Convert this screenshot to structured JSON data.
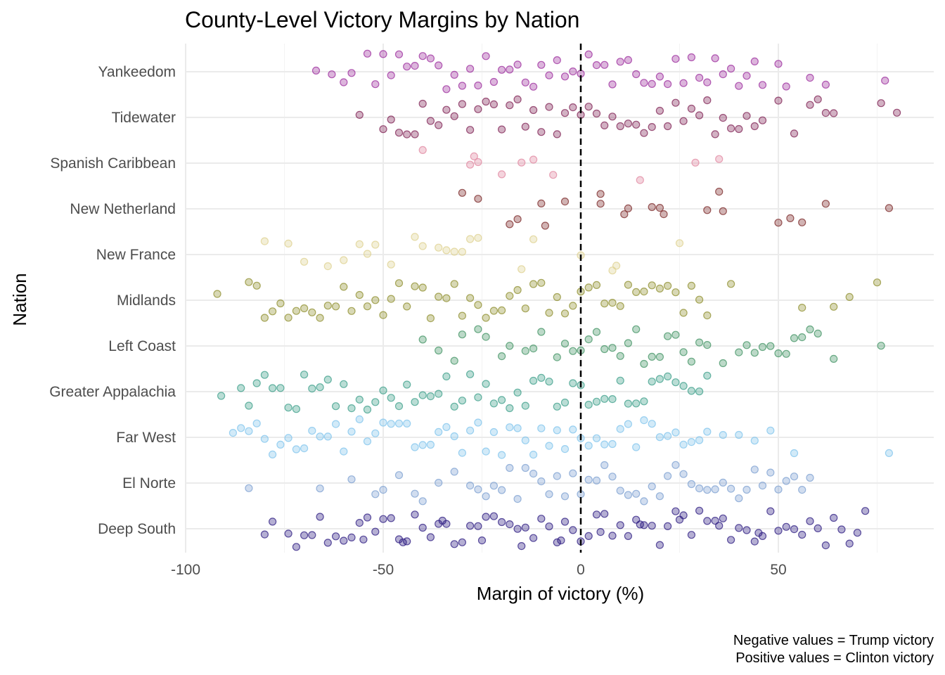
{
  "chart_data": {
    "type": "scatter",
    "title": "County-Level Victory Margins by Nation",
    "xlabel": "Margin of victory (%)",
    "ylabel": "Nation",
    "xlim": [
      -100,
      90
    ],
    "x_ticks": [
      -100,
      -50,
      0,
      50
    ],
    "x_tick_labels": [
      "-100",
      "-50",
      "0",
      "50"
    ],
    "reference_line": {
      "x": 0,
      "style": "dashed",
      "color": "#000000"
    },
    "grid": true,
    "legend": "none",
    "jitter": "vertical jitter within each nation row",
    "point_opacity": 0.35,
    "categories": [
      "Deep South",
      "El Norte",
      "Far West",
      "Greater Appalachia",
      "Left Coast",
      "Midlands",
      "New France",
      "New Netherland",
      "Spanish Caribbean",
      "Tidewater",
      "Yankeedom"
    ],
    "series": [
      {
        "name": "Deep South",
        "color": "#2b1a80",
        "x": [
          -80,
          -78,
          -74,
          -72,
          -70,
          -68,
          -66,
          -64,
          -62,
          -60,
          -58,
          -56,
          -55,
          -54,
          -52,
          -50,
          -48,
          -46,
          -45,
          -44,
          -42,
          -40,
          -38,
          -36,
          -35,
          -34,
          -32,
          -30,
          -28,
          -26,
          -25,
          -24,
          -22,
          -20,
          -18,
          -16,
          -15,
          -14,
          -12,
          -10,
          -8,
          -6,
          -5,
          -4,
          -2,
          0,
          2,
          4,
          5,
          6,
          8,
          10,
          12,
          14,
          15,
          16,
          18,
          20,
          22,
          24,
          25,
          26,
          28,
          30,
          32,
          34,
          35,
          36,
          38,
          40,
          42,
          44,
          45,
          46,
          48,
          50,
          52,
          54,
          56,
          58,
          60,
          62,
          64,
          66,
          68,
          70,
          72
        ]
      },
      {
        "name": "El Norte",
        "color": "#7b9fd0",
        "x": [
          -84,
          -66,
          -58,
          -52,
          -50,
          -46,
          -42,
          -40,
          -36,
          -32,
          -28,
          -26,
          -24,
          -22,
          -20,
          -18,
          -16,
          -14,
          -12,
          -10,
          -8,
          -6,
          -4,
          -2,
          0,
          2,
          4,
          6,
          8,
          10,
          12,
          14,
          16,
          18,
          20,
          22,
          24,
          26,
          28,
          30,
          32,
          34,
          36,
          38,
          40,
          42,
          44,
          46,
          48,
          50,
          52,
          54,
          56,
          58
        ]
      },
      {
        "name": "Far West",
        "color": "#7ec3ec",
        "x": [
          -88,
          -86,
          -84,
          -82,
          -80,
          -78,
          -76,
          -74,
          -72,
          -70,
          -68,
          -66,
          -64,
          -62,
          -60,
          -58,
          -56,
          -54,
          -52,
          -50,
          -48,
          -46,
          -44,
          -42,
          -40,
          -38,
          -36,
          -34,
          -32,
          -30,
          -28,
          -26,
          -24,
          -22,
          -20,
          -18,
          -16,
          -14,
          -12,
          -10,
          -8,
          -6,
          -4,
          -2,
          0,
          2,
          4,
          6,
          8,
          10,
          12,
          14,
          16,
          18,
          20,
          22,
          24,
          26,
          28,
          30,
          32,
          36,
          40,
          44,
          48,
          54,
          78
        ]
      },
      {
        "name": "Greater Appalachia",
        "color": "#3a9e88",
        "x": [
          -91,
          -86,
          -84,
          -82,
          -80,
          -78,
          -76,
          -74,
          -72,
          -70,
          -68,
          -66,
          -64,
          -62,
          -60,
          -58,
          -56,
          -54,
          -52,
          -50,
          -48,
          -46,
          -44,
          -42,
          -40,
          -38,
          -36,
          -34,
          -32,
          -30,
          -28,
          -26,
          -24,
          -22,
          -20,
          -18,
          -16,
          -14,
          -12,
          -10,
          -8,
          -6,
          -4,
          -2,
          0,
          2,
          4,
          6,
          8,
          10,
          12,
          14,
          16,
          18,
          20,
          22,
          24,
          26,
          28,
          30,
          32
        ]
      },
      {
        "name": "Left Coast",
        "color": "#3f9162",
        "x": [
          -40,
          -36,
          -32,
          -30,
          -26,
          -24,
          -20,
          -18,
          -14,
          -12,
          -10,
          -6,
          -4,
          -2,
          0,
          2,
          4,
          6,
          8,
          10,
          12,
          14,
          16,
          18,
          20,
          22,
          24,
          26,
          28,
          30,
          32,
          36,
          40,
          42,
          44,
          46,
          48,
          50,
          52,
          54,
          56,
          58,
          60,
          64,
          76
        ]
      },
      {
        "name": "Midlands",
        "color": "#8e8e2c",
        "x": [
          -92,
          -84,
          -82,
          -80,
          -78,
          -76,
          -74,
          -72,
          -70,
          -68,
          -66,
          -64,
          -62,
          -60,
          -58,
          -56,
          -54,
          -52,
          -50,
          -48,
          -46,
          -44,
          -42,
          -40,
          -38,
          -36,
          -34,
          -32,
          -30,
          -28,
          -26,
          -24,
          -22,
          -20,
          -18,
          -16,
          -14,
          -12,
          -10,
          -8,
          -6,
          -4,
          -2,
          0,
          2,
          4,
          6,
          8,
          10,
          12,
          14,
          16,
          18,
          20,
          22,
          24,
          26,
          28,
          30,
          32,
          38,
          56,
          64,
          68,
          75
        ]
      },
      {
        "name": "New France",
        "color": "#ddd08e",
        "x": [
          -80,
          -74,
          -70,
          -64,
          -60,
          -56,
          -54,
          -52,
          -48,
          -42,
          -40,
          -36,
          -34,
          -32,
          -30,
          -28,
          -26,
          -15,
          -12,
          0,
          8,
          9,
          25
        ]
      },
      {
        "name": "New Netherland",
        "color": "#7a2626",
        "x": [
          -30,
          -26,
          -18,
          -16,
          -10,
          -9,
          -4,
          5,
          5,
          11,
          12,
          18,
          20,
          21,
          32,
          35,
          36,
          50,
          53,
          56,
          62,
          78
        ]
      },
      {
        "name": "Spanish Caribbean",
        "color": "#e0859f",
        "x": [
          -40,
          -28,
          -27,
          -26,
          -20,
          -15,
          -12,
          -7,
          15,
          29,
          35
        ]
      },
      {
        "name": "Tidewater",
        "color": "#7e1f52",
        "x": [
          -56,
          -50,
          -48,
          -46,
          -44,
          -42,
          -40,
          -38,
          -36,
          -34,
          -32,
          -30,
          -28,
          -26,
          -24,
          -22,
          -20,
          -18,
          -16,
          -14,
          -12,
          -10,
          -8,
          -6,
          -4,
          -2,
          0,
          2,
          4,
          6,
          8,
          10,
          12,
          14,
          16,
          18,
          20,
          22,
          24,
          26,
          28,
          30,
          32,
          34,
          36,
          38,
          40,
          42,
          44,
          46,
          50,
          54,
          58,
          60,
          62,
          64,
          76,
          80
        ]
      },
      {
        "name": "Yankeedom",
        "color": "#9b2a9c",
        "x": [
          -67,
          -63,
          -60,
          -58,
          -54,
          -52,
          -50,
          -48,
          -46,
          -44,
          -42,
          -40,
          -38,
          -36,
          -34,
          -32,
          -30,
          -28,
          -26,
          -24,
          -22,
          -20,
          -18,
          -16,
          -14,
          -12,
          -10,
          -8,
          -6,
          -4,
          -2,
          0,
          2,
          4,
          6,
          8,
          10,
          12,
          14,
          16,
          18,
          20,
          22,
          24,
          26,
          28,
          30,
          32,
          34,
          36,
          38,
          40,
          42,
          44,
          46,
          50,
          52,
          58,
          62,
          77
        ]
      }
    ]
  },
  "caption_lines": [
    "Negative values = Trump victory",
    "Positive values = Clinton victory"
  ]
}
